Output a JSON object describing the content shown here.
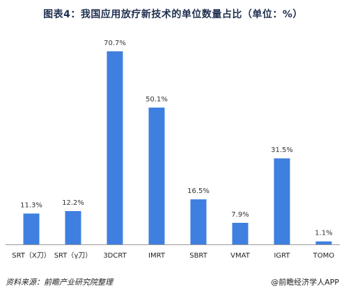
{
  "chart_data": {
    "type": "bar",
    "title": "图表4：我国应用放疗新技术的单位数量占比（单位：%）",
    "categories": [
      "SRT（X刀）",
      "SRT（γ刀）",
      "3DCRT",
      "IMRT",
      "SBRT",
      "VMAT",
      "IGRT",
      "TOMO"
    ],
    "values": [
      11.3,
      12.2,
      70.7,
      50.1,
      16.5,
      7.9,
      31.5,
      1.1
    ],
    "data_labels": [
      "11.3%",
      "12.2%",
      "70.7%",
      "50.1%",
      "16.5%",
      "7.9%",
      "31.5%",
      "1.1%"
    ],
    "ylim": [
      0,
      75
    ],
    "grid": false,
    "legend": "none",
    "bar_color": "#3f7fe0",
    "axis_color": "#999999"
  },
  "footer": {
    "source": "资料来源：前瞻产业研究院整理",
    "brand": "@前瞻经济学人APP"
  }
}
